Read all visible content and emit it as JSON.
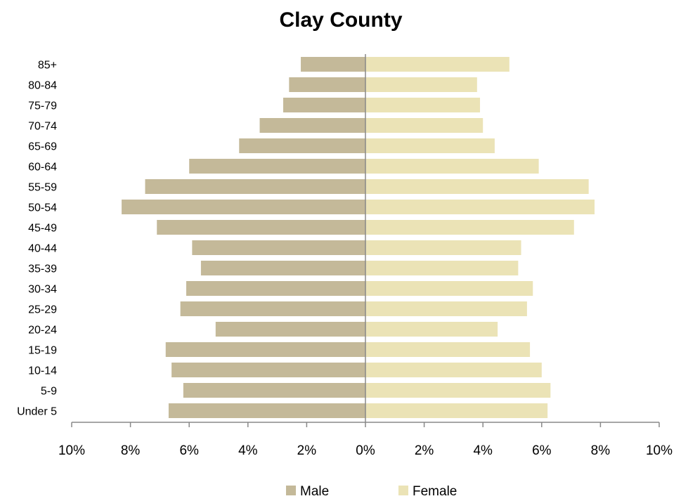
{
  "chart_data": {
    "type": "bar",
    "orientation": "horizontal",
    "title": "Clay County",
    "categories": [
      "85+",
      "80-84",
      "75-79",
      "70-74",
      "65-69",
      "60-64",
      "55-59",
      "50-54",
      "45-49",
      "40-44",
      "35-39",
      "30-34",
      "25-29",
      "20-24",
      "15-19",
      "10-14",
      "5-9",
      "Under 5"
    ],
    "series": [
      {
        "name": "Male",
        "color": "#c4b999",
        "values": [
          2.2,
          2.6,
          2.8,
          3.6,
          4.3,
          6.0,
          7.5,
          8.3,
          7.1,
          5.9,
          5.6,
          6.1,
          6.3,
          5.1,
          6.8,
          6.6,
          6.2,
          6.7
        ]
      },
      {
        "name": "Female",
        "color": "#ebe3b6",
        "values": [
          4.9,
          3.8,
          3.9,
          4.0,
          4.4,
          5.9,
          7.6,
          7.8,
          7.1,
          5.3,
          5.2,
          5.7,
          5.5,
          4.5,
          5.6,
          6.0,
          6.3,
          6.2
        ]
      }
    ],
    "xlim": [
      -10,
      10
    ],
    "xticks": [
      -10,
      -8,
      -6,
      -4,
      -2,
      0,
      2,
      4,
      6,
      8,
      10
    ],
    "xtick_labels": [
      "10%",
      "8%",
      "6%",
      "4%",
      "2%",
      "0%",
      "2%",
      "4%",
      "6%",
      "8%",
      "10%"
    ],
    "grid": false,
    "legend_position": "bottom"
  }
}
